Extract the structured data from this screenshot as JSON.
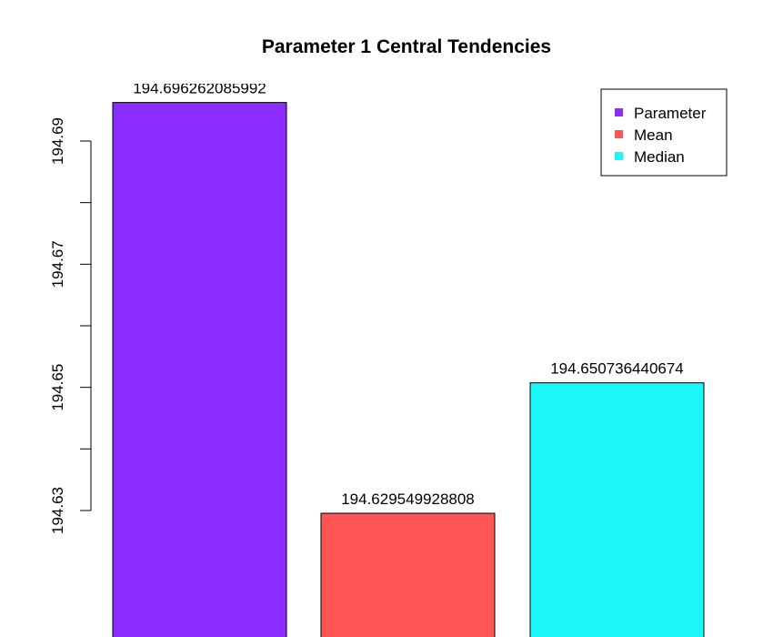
{
  "chart_data": {
    "type": "bar",
    "title": "Parameter 1 Central Tendencies",
    "xlabel": "",
    "ylabel": "",
    "categories": [
      "Parameter",
      "Mean",
      "Median"
    ],
    "values": [
      194.696262085992,
      194.629549928808,
      194.650736440674
    ],
    "bar_labels": [
      "194.696262085992",
      "194.629549928808",
      "194.650736440674"
    ],
    "colors": [
      "#8A2BFF",
      "#FF5555",
      "#1CF8F8"
    ],
    "y_ticks": [
      194.63,
      194.64,
      194.65,
      194.66,
      194.67,
      194.68,
      194.69
    ],
    "y_tick_labels": [
      "194.63",
      "",
      "194.65",
      "",
      "194.67",
      "",
      "194.69"
    ],
    "ylim": [
      194.6135,
      194.6975
    ],
    "legend": {
      "position": "top-right",
      "entries": [
        "Parameter",
        "Mean",
        "Median"
      ]
    },
    "grid": false
  }
}
